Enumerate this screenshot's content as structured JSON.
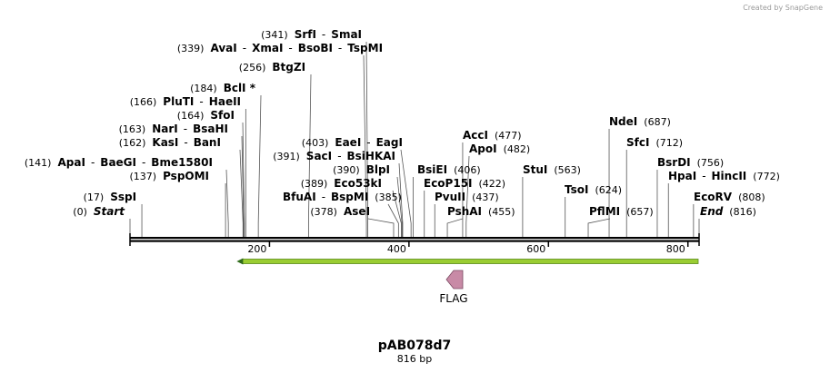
{
  "credit": "Created by SnapGene",
  "plasmid": {
    "name": "pAB078d7",
    "length_label": "816 bp",
    "length": 816
  },
  "ticks": [
    {
      "pos": 200,
      "label": "200"
    },
    {
      "pos": 400,
      "label": "400"
    },
    {
      "pos": 600,
      "label": "600"
    },
    {
      "pos": 800,
      "label": "800"
    }
  ],
  "feature": {
    "label": "FLAG",
    "start": 153,
    "end": 816,
    "direction": "reverse",
    "color": "#9acd32",
    "arrow_color": "#c88aa6"
  },
  "sites": [
    {
      "pos": 0,
      "pos_label": "(0)",
      "names": [
        "Start"
      ],
      "italic": true,
      "align": "right"
    },
    {
      "pos": 17,
      "pos_label": "(17)",
      "names": [
        "SspI"
      ],
      "align": "right"
    },
    {
      "pos": 137,
      "pos_label": "(137)",
      "names": [
        "PspOMI"
      ],
      "align": "right"
    },
    {
      "pos": 141,
      "pos_label": "(141)",
      "names": [
        "ApaI",
        "BaeGI",
        "Bme1580I"
      ],
      "align": "right"
    },
    {
      "pos": 162,
      "pos_label": "(162)",
      "names": [
        "KasI",
        "BanI"
      ],
      "align": "right"
    },
    {
      "pos": 163,
      "pos_label": "(163)",
      "names": [
        "NarI",
        "BsaHI"
      ],
      "align": "right"
    },
    {
      "pos": 164,
      "pos_label": "(164)",
      "names": [
        "SfoI"
      ],
      "align": "right"
    },
    {
      "pos": 166,
      "pos_label": "(166)",
      "names": [
        "PluTI",
        "HaeII"
      ],
      "align": "right"
    },
    {
      "pos": 184,
      "pos_label": "(184)",
      "names": [
        "BclI *"
      ],
      "align": "right"
    },
    {
      "pos": 256,
      "pos_label": "(256)",
      "names": [
        "BtgZI"
      ],
      "align": "right"
    },
    {
      "pos": 339,
      "pos_label": "(339)",
      "names": [
        "AvaI",
        "XmaI",
        "BsoBI",
        "TspMI"
      ],
      "align": "right"
    },
    {
      "pos": 341,
      "pos_label": "(341)",
      "names": [
        "SrfI",
        "SmaI"
      ],
      "align": "right"
    },
    {
      "pos": 378,
      "pos_label": "(378)",
      "names": [
        "AseI"
      ],
      "align": "right"
    },
    {
      "pos": 385,
      "pos_label": "(385)",
      "names": [
        "BfuAI",
        "BspMI"
      ],
      "align": "left"
    },
    {
      "pos": 389,
      "pos_label": "(389)",
      "names": [
        "Eco53kI"
      ],
      "align": "right"
    },
    {
      "pos": 390,
      "pos_label": "(390)",
      "names": [
        "BlpI"
      ],
      "align": "right"
    },
    {
      "pos": 391,
      "pos_label": "(391)",
      "names": [
        "SacI",
        "BsiHKAI"
      ],
      "align": "right"
    },
    {
      "pos": 403,
      "pos_label": "(403)",
      "names": [
        "EaeI",
        "EagI"
      ],
      "align": "right"
    },
    {
      "pos": 406,
      "pos_label": "(406)",
      "names": [
        "BsiEI"
      ],
      "align": "left"
    },
    {
      "pos": 422,
      "pos_label": "(422)",
      "names": [
        "EcoP15I"
      ],
      "align": "left"
    },
    {
      "pos": 437,
      "pos_label": "(437)",
      "names": [
        "PvuII"
      ],
      "align": "left"
    },
    {
      "pos": 455,
      "pos_label": "(455)",
      "names": [
        "PshAI"
      ],
      "align": "left"
    },
    {
      "pos": 477,
      "pos_label": "(477)",
      "names": [
        "AccI"
      ],
      "align": "left"
    },
    {
      "pos": 482,
      "pos_label": "(482)",
      "names": [
        "ApoI"
      ],
      "align": "left"
    },
    {
      "pos": 563,
      "pos_label": "(563)",
      "names": [
        "StuI"
      ],
      "align": "left"
    },
    {
      "pos": 624,
      "pos_label": "(624)",
      "names": [
        "TsoI"
      ],
      "align": "left"
    },
    {
      "pos": 657,
      "pos_label": "(657)",
      "names": [
        "PflMI"
      ],
      "align": "left"
    },
    {
      "pos": 687,
      "pos_label": "(687)",
      "names": [
        "NdeI"
      ],
      "align": "left"
    },
    {
      "pos": 712,
      "pos_label": "(712)",
      "names": [
        "SfcI"
      ],
      "align": "left"
    },
    {
      "pos": 756,
      "pos_label": "(756)",
      "names": [
        "BsrDI"
      ],
      "align": "left"
    },
    {
      "pos": 772,
      "pos_label": "(772)",
      "names": [
        "HpaI",
        "HincII"
      ],
      "align": "left"
    },
    {
      "pos": 808,
      "pos_label": "(808)",
      "names": [
        "EcoRV"
      ],
      "align": "left"
    },
    {
      "pos": 816,
      "pos_label": "(816)",
      "names": [
        "End"
      ],
      "italic": true,
      "align": "left"
    }
  ]
}
